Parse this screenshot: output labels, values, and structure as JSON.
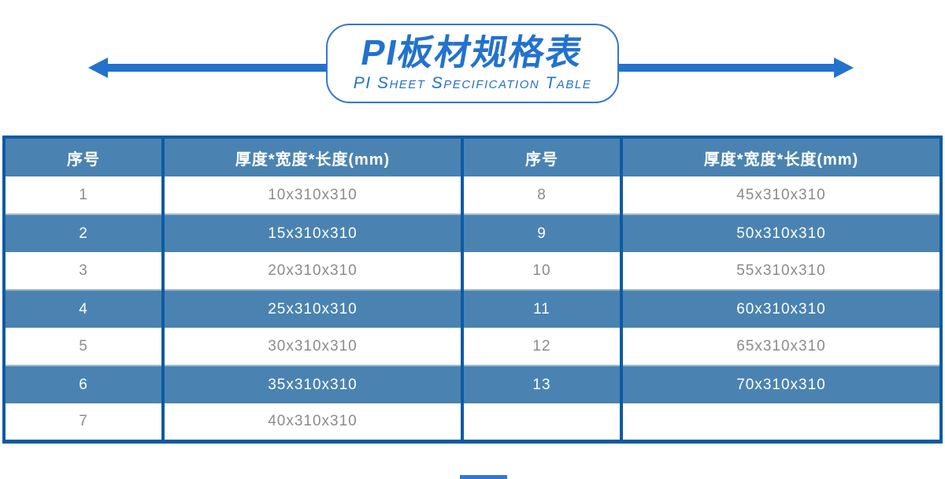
{
  "banner": {
    "title": "PI板材规格表",
    "subtitle": "PI Sheet Specification Table"
  },
  "table": {
    "columns": [
      "序号",
      "厚度*宽度*长度(mm)",
      "序号",
      "厚度*宽度*长度(mm)"
    ],
    "rows": [
      [
        "1",
        "10x310x310",
        "8",
        "45x310x310"
      ],
      [
        "2",
        "15x310x310",
        "9",
        "50x310x310"
      ],
      [
        "3",
        "20x310x310",
        "10",
        "55x310x310"
      ],
      [
        "4",
        "25x310x310",
        "11",
        "60x310x310"
      ],
      [
        "5",
        "30x310x310",
        "12",
        "65x310x310"
      ],
      [
        "6",
        "35x310x310",
        "13",
        "70x310x310"
      ],
      [
        "7",
        "40x310x310",
        "",
        ""
      ]
    ]
  },
  "icons": {
    "left_arrow": "left-arrow-icon",
    "right_arrow": "right-arrow-icon"
  },
  "colors": {
    "accent_blue": "#2272CE",
    "table_border": "#0D5BA3",
    "header_bg": "#4A83B1",
    "alt_row_bg": "#4A83B1",
    "alt_row_divider": "#9DB9CF",
    "row_text": "#8B8B8B",
    "header_text": "#FFFFFF"
  }
}
